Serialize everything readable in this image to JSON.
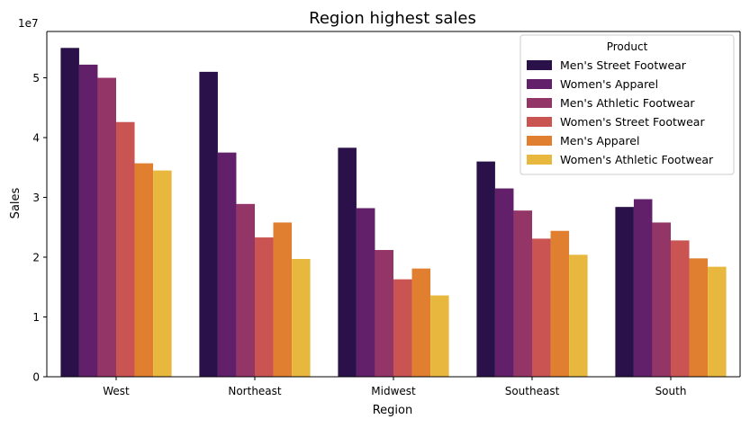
{
  "chart_data": {
    "type": "bar",
    "title": "Region highest sales",
    "xlabel": "Region",
    "ylabel": "Sales",
    "y_multiplier_label": "1e7",
    "ylim": [
      0,
      57750000
    ],
    "y_ticks": [
      0,
      10000000,
      20000000,
      30000000,
      40000000,
      50000000
    ],
    "y_tick_labels": [
      "0",
      "1",
      "2",
      "3",
      "4",
      "5"
    ],
    "grid": false,
    "legend_title": "Product",
    "legend_position": "top-right",
    "categories": [
      "West",
      "Northeast",
      "Midwest",
      "Southeast",
      "South"
    ],
    "series": [
      {
        "name": "Men's Street Footwear",
        "color": "#2a1149",
        "values": [
          55000000,
          51000000,
          38300000,
          36000000,
          28400000
        ]
      },
      {
        "name": "Women's Apparel",
        "color": "#63206a",
        "values": [
          52200000,
          37500000,
          28200000,
          31500000,
          29700000
        ]
      },
      {
        "name": "Men's Athletic Footwear",
        "color": "#933566",
        "values": [
          50000000,
          28900000,
          21200000,
          27800000,
          25800000
        ]
      },
      {
        "name": "Women's Street Footwear",
        "color": "#c95452",
        "values": [
          42600000,
          23300000,
          16300000,
          23100000,
          22800000
        ]
      },
      {
        "name": "Men's Apparel",
        "color": "#e07f2f",
        "values": [
          35700000,
          25800000,
          18100000,
          24400000,
          19800000
        ]
      },
      {
        "name": "Women's Athletic Footwear",
        "color": "#e8b83e",
        "values": [
          34500000,
          19700000,
          13600000,
          20400000,
          18400000
        ]
      }
    ]
  }
}
